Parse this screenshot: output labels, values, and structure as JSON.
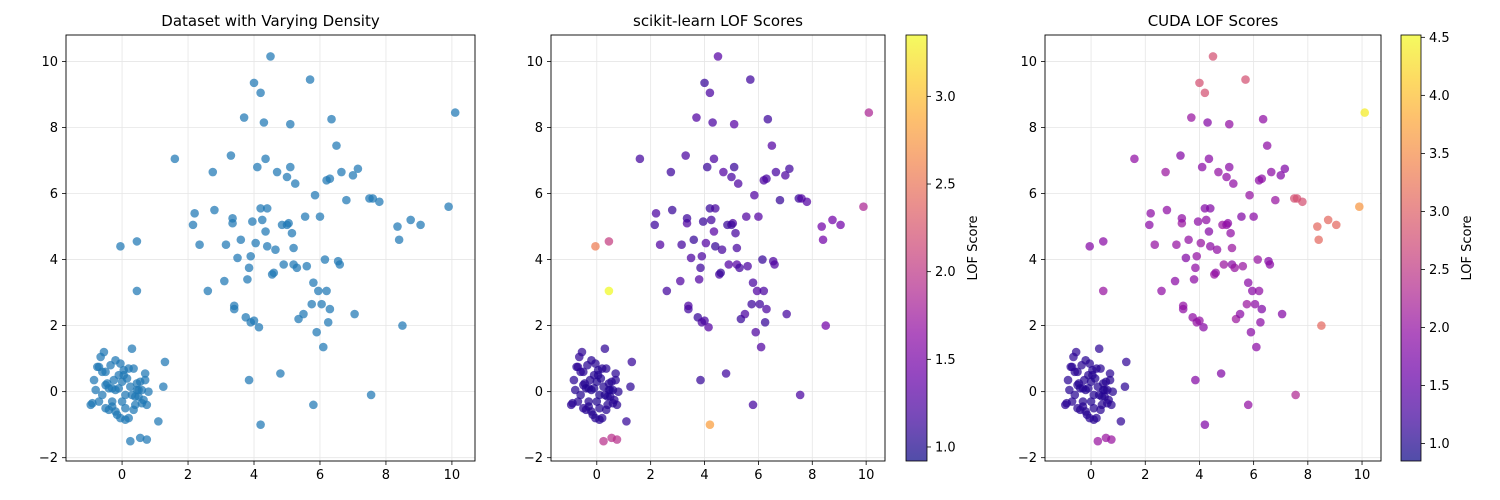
{
  "chart_data": [
    {
      "type": "scatter",
      "title": "Dataset with Varying Density",
      "xlabel": "",
      "ylabel": "",
      "xlim": [
        -1.7,
        10.7
      ],
      "ylim": [
        -2.1,
        10.8
      ],
      "xticks": [
        0,
        2,
        4,
        6,
        8,
        10
      ],
      "yticks": [
        -2,
        0,
        2,
        4,
        6,
        8,
        10
      ],
      "grid": true,
      "colors": {
        "point": "#1f77b4"
      },
      "colorbar": null,
      "series": [
        {
          "x": [
            -0.9,
            -0.85,
            -0.8,
            -0.75,
            -0.7,
            -0.65,
            -0.6,
            -0.55,
            -0.5,
            -0.45,
            -0.4,
            -0.35,
            -0.3,
            -0.25,
            -0.2,
            -0.15,
            -0.1,
            -0.05,
            0,
            0.05,
            0.1,
            0.15,
            0.2,
            0.25,
            0.3,
            0.35,
            0.4,
            0.45,
            0.5,
            0.55,
            0.6,
            0.65,
            0.7,
            0.75,
            -0.6,
            -0.4,
            -0.2,
            0,
            0.2,
            0.4,
            0.6,
            -0.5,
            -0.3,
            -0.1,
            0.1,
            0.3,
            0.5,
            0.7,
            -0.7,
            -0.2,
            0.8,
            1.3,
            1.25,
            1.1,
            0.35,
            0.55,
            0.75,
            0.25,
            0.1,
            -0.05,
            0.45,
            -0.95,
            0.05,
            -0.5,
            -0.3
          ],
          "y": [
            -0.35,
            0.35,
            0.05,
            0.75,
            -0.3,
            1.05,
            -0.1,
            1.2,
            0.6,
            0.25,
            -0.55,
            0.8,
            -0.45,
            0.35,
            0.95,
            -0.7,
            0.1,
            0.85,
            -0.3,
            0.5,
            -0.1,
            0.4,
            -0.8,
            0.15,
            1.3,
            0.7,
            -0.4,
            0.25,
            -0.15,
            0.3,
            0.05,
            -0.25,
            0.55,
            -0.4,
            0.6,
            0.1,
            -0.6,
            0.3,
            0.7,
            -0.15,
            -0.35,
            0.2,
            -0.3,
            0.5,
            -0.5,
            -0.1,
            0.05,
            0.35,
            0.75,
            0.05,
            0,
            0.9,
            0.15,
            -0.9,
            -0.55,
            -1.4,
            -1.45,
            -1.5,
            -0.85,
            -0.8,
            0.05,
            -0.4,
            0.65,
            -0.5,
            0.1
          ],
          "cloud_x": [
            -0.05,
            0.45,
            0.45,
            1.6,
            2.15,
            2.2,
            2.35,
            2.6,
            2.75,
            2.8,
            3.1,
            3.15,
            3.3,
            3.35,
            3.35,
            3.4,
            3.4,
            3.5,
            3.6,
            3.7,
            3.75,
            3.8,
            3.85,
            3.9,
            3.9,
            3.95,
            4.0,
            4.0,
            4.05,
            4.1,
            4.15,
            4.2,
            4.2,
            4.25,
            4.3,
            4.35,
            4.35,
            4.4,
            4.5,
            4.55,
            4.6,
            4.65,
            4.7,
            4.8,
            4.85,
            4.9,
            5.0,
            5.05,
            5.1,
            5.1,
            5.15,
            5.2,
            5.2,
            5.25,
            5.3,
            5.35,
            5.5,
            5.55,
            5.6,
            5.7,
            5.75,
            5.8,
            5.85,
            5.9,
            5.95,
            6.0,
            6.05,
            6.1,
            6.15,
            6.2,
            6.25,
            6.3,
            6.3,
            6.35,
            6.5,
            6.55,
            6.6,
            6.65,
            6.8,
            7.0,
            7.05,
            7.15,
            7.5,
            7.55,
            7.8,
            8.35,
            8.4,
            8.5,
            8.75,
            9.05,
            9.9,
            10.1,
            3.85,
            4.2,
            5.8,
            7.6,
            4.4,
            5.0,
            6.2
          ],
          "cloud_y": [
            4.4,
            4.55,
            3.05,
            7.05,
            5.05,
            5.4,
            4.45,
            3.05,
            6.65,
            5.5,
            3.35,
            4.45,
            7.15,
            5.1,
            5.25,
            2.5,
            2.6,
            4.05,
            4.6,
            8.3,
            2.25,
            3.4,
            3.75,
            2.1,
            4.1,
            5.15,
            9.35,
            2.15,
            4.5,
            6.8,
            1.95,
            5.55,
            9.05,
            5.2,
            8.15,
            4.85,
            7.05,
            4.4,
            10.15,
            3.55,
            3.6,
            4.3,
            6.65,
            0.55,
            5.05,
            3.85,
            6.5,
            5.1,
            6.8,
            8.1,
            4.8,
            4.35,
            3.85,
            6.3,
            3.75,
            2.2,
            2.35,
            5.3,
            3.8,
            9.45,
            2.65,
            3.3,
            5.95,
            1.8,
            3.05,
            5.3,
            2.65,
            1.35,
            4.0,
            3.05,
            2.1,
            2.5,
            6.45,
            8.25,
            7.45,
            3.95,
            3.85,
            6.65,
            5.8,
            6.55,
            2.35,
            6.75,
            5.85,
            -0.1,
            5.75,
            5.0,
            4.6,
            2.0,
            5.2,
            5.05,
            5.6,
            8.45,
            0.35,
            -1.0,
            -0.4,
            5.85,
            5.55,
            5.05,
            6.4
          ],
          "scores": null
        }
      ]
    },
    {
      "type": "scatter",
      "title": "scikit-learn LOF Scores",
      "xlabel": "",
      "ylabel": "",
      "xlim": [
        -1.7,
        10.7
      ],
      "ylim": [
        -2.1,
        10.8
      ],
      "xticks": [
        0,
        2,
        4,
        6,
        8,
        10
      ],
      "yticks": [
        -2,
        0,
        2,
        4,
        6,
        8,
        10
      ],
      "grid": true,
      "colorbar": {
        "label": "LOF Score",
        "min": 0.92,
        "max": 3.35,
        "ticks": [
          1.0,
          1.5,
          2.0,
          2.5,
          3.0
        ],
        "tick_labels": [
          "1.0",
          "1.5",
          "2.0",
          "2.5",
          "3.0"
        ],
        "colormap": "plasma"
      }
    },
    {
      "type": "scatter",
      "title": "CUDA LOF Scores",
      "xlabel": "",
      "ylabel": "",
      "xlim": [
        -1.7,
        10.7
      ],
      "ylim": [
        -2.1,
        10.8
      ],
      "xticks": [
        0,
        2,
        4,
        6,
        8,
        10
      ],
      "yticks": [
        -2,
        0,
        2,
        4,
        6,
        8,
        10
      ],
      "grid": true,
      "colorbar": {
        "label": "LOF Score",
        "min": 0.85,
        "max": 4.52,
        "ticks": [
          1.0,
          1.5,
          2.0,
          2.5,
          3.0,
          3.5,
          4.0,
          4.5
        ],
        "tick_labels": [
          "1.0",
          "1.5",
          "2.0",
          "2.5",
          "3.0",
          "3.5",
          "4.0",
          "4.5"
        ],
        "colormap": "plasma"
      }
    }
  ]
}
